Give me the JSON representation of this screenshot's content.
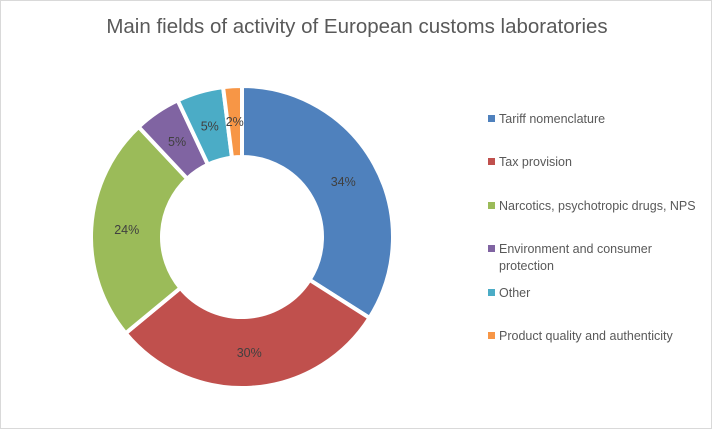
{
  "chart_data": {
    "type": "pie",
    "variant": "doughnut",
    "title": "Main fields of activity of European customs laboratories",
    "categories": [
      "Tariff nomenclature",
      "Tax provision",
      "Narcotics, psychotropic drugs, NPS",
      "Environment and consumer protection",
      "Other",
      "Product quality and authenticity"
    ],
    "values": [
      34,
      30,
      24,
      5,
      5,
      2
    ],
    "data_labels": [
      "34%",
      "30%",
      "24%",
      "5%",
      "5%",
      "2%"
    ],
    "colors": [
      "#4f81bd",
      "#c0504d",
      "#9bbb59",
      "#8064a2",
      "#4bacc6",
      "#f79646"
    ],
    "legend_position": "right"
  }
}
